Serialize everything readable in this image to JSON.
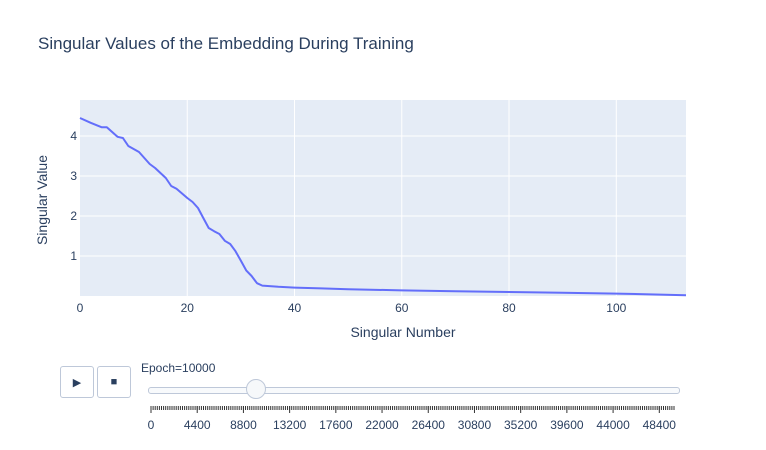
{
  "chart_data": {
    "type": "line",
    "title": "Singular Values of the Embedding During Training",
    "xlabel": "Singular Number",
    "ylabel": "Singular Value",
    "xlim": [
      0,
      113
    ],
    "ylim": [
      0,
      4.9
    ],
    "x_ticks": [
      0,
      20,
      40,
      60,
      80,
      100
    ],
    "y_ticks": [
      1,
      2,
      3,
      4
    ],
    "grid": true,
    "series": [
      {
        "color": "#636efa",
        "x": [
          0,
          2,
          4,
          5,
          7,
          8,
          9,
          11,
          13,
          14,
          16,
          17,
          18,
          20,
          21,
          22,
          23,
          24,
          25,
          26,
          27,
          28,
          29,
          30,
          31,
          32,
          33,
          34,
          37,
          40,
          45,
          50,
          60,
          70,
          80,
          90,
          100,
          113
        ],
        "y": [
          4.45,
          4.33,
          4.22,
          4.22,
          3.98,
          3.95,
          3.75,
          3.6,
          3.3,
          3.2,
          2.95,
          2.75,
          2.68,
          2.45,
          2.35,
          2.2,
          1.95,
          1.7,
          1.62,
          1.55,
          1.38,
          1.3,
          1.12,
          0.88,
          0.64,
          0.5,
          0.32,
          0.26,
          0.23,
          0.21,
          0.19,
          0.17,
          0.14,
          0.12,
          0.1,
          0.08,
          0.06,
          0.02
        ]
      }
    ]
  },
  "animation": {
    "play_icon": "play-icon",
    "stop_icon": "stop-icon",
    "play_glyph": "▶",
    "stop_glyph": "■",
    "slider_label": "Epoch=10000",
    "slider_value": 10000,
    "slider_min": 0,
    "slider_max": 49800,
    "slider_tick_labels": [
      "0",
      "4400",
      "8800",
      "13200",
      "17600",
      "22000",
      "26400",
      "30800",
      "35200",
      "39600",
      "44000",
      "48400"
    ],
    "slider_tick_values": [
      0,
      4400,
      8800,
      13200,
      17600,
      22000,
      26400,
      30800,
      35200,
      39600,
      44000,
      48400
    ]
  }
}
